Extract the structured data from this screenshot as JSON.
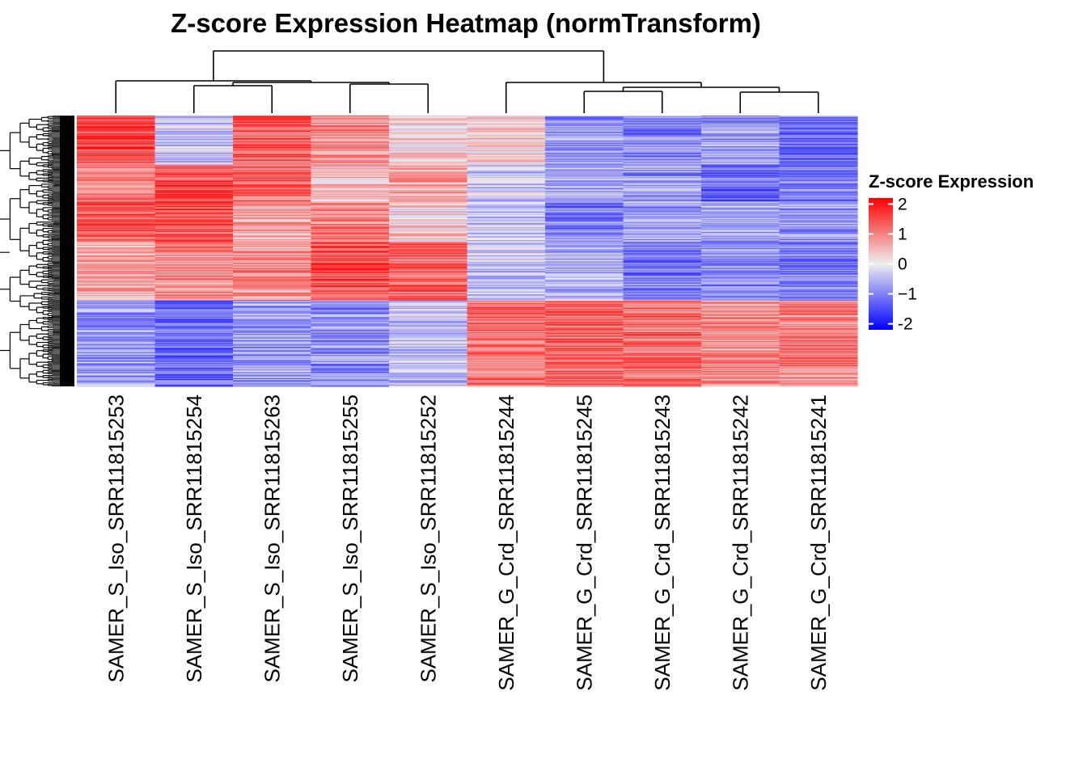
{
  "chart_data": {
    "type": "heatmap",
    "title": "Z-score Expression Heatmap (normTransform)",
    "columns": [
      "SAMER_S_Iso_SRR11815253",
      "SAMER_S_Iso_SRR11815254",
      "SAMER_S_Iso_SRR11815263",
      "SAMER_S_Iso_SRR11815255",
      "SAMER_S_Iso_SRR11815252",
      "SAMER_G_Crd_SRR11815244",
      "SAMER_G_Crd_SRR11815245",
      "SAMER_G_Crd_SRR11815243",
      "SAMER_G_Crd_SRR11815242",
      "SAMER_G_Crd_SRR11815241"
    ],
    "row_count": 300,
    "row_blocks": [
      {
        "rows": 55,
        "values": [
          1.5,
          -0.3,
          1.4,
          0.9,
          0.2,
          0.3,
          -0.8,
          -1.0,
          -0.8,
          -1.1
        ]
      },
      {
        "rows": 40,
        "values": [
          1.1,
          1.5,
          1.3,
          0.4,
          0.7,
          -0.3,
          -0.6,
          -0.8,
          -1.2,
          -1.0
        ]
      },
      {
        "rows": 45,
        "values": [
          1.3,
          1.4,
          0.7,
          1.0,
          0.3,
          -0.4,
          -1.1,
          -0.7,
          -0.6,
          -0.8
        ]
      },
      {
        "rows": 65,
        "values": [
          0.6,
          0.9,
          0.9,
          1.5,
          1.3,
          -0.4,
          -0.6,
          -1.0,
          -0.9,
          -1.0
        ]
      },
      {
        "rows": 95,
        "values": [
          -0.8,
          -1.2,
          -0.8,
          -0.9,
          -0.4,
          1.2,
          1.3,
          1.2,
          0.9,
          1.0
        ]
      }
    ],
    "legend": {
      "title": "Z-score Expression",
      "min": -2.2,
      "max": 2.2,
      "ticks": [
        2,
        1,
        0,
        -1,
        -2
      ],
      "tick_labels": [
        "2",
        "1",
        "0",
        "−1",
        "-2"
      ],
      "colors": {
        "low": "#0000ff",
        "mid": "#eeeeee",
        "high": "#ff0000"
      }
    },
    "column_dendrogram": {
      "left": [
        0,
        [
          1,
          2
        ],
        [
          3,
          4
        ]
      ],
      "right": [
        5,
        [
          6,
          7
        ],
        [
          8,
          9
        ]
      ]
    }
  }
}
